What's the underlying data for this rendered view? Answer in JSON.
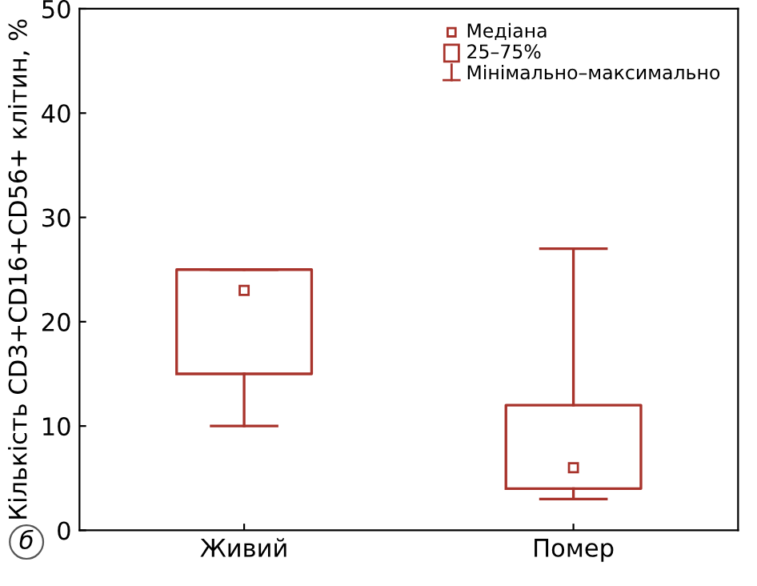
{
  "chart_data": {
    "type": "box",
    "ylabel": "Кількість CD3+CD16+CD56+ клітин, %",
    "categories": [
      "Живий",
      "Помер"
    ],
    "boxes": [
      {
        "low": 10,
        "q1": 15,
        "median": 23,
        "q3": 25,
        "high": 25
      },
      {
        "low": 3,
        "q1": 4,
        "median": 6,
        "q3": 12,
        "high": 27
      }
    ],
    "color": "#a8332b",
    "ylim": [
      0,
      50
    ],
    "yticks": [
      0,
      10,
      20,
      30,
      40,
      50
    ],
    "grid": false,
    "marker": "square",
    "annotations": [
      "Медіана",
      "25–75%",
      "Мінімально–максимально",
      "б"
    ]
  }
}
